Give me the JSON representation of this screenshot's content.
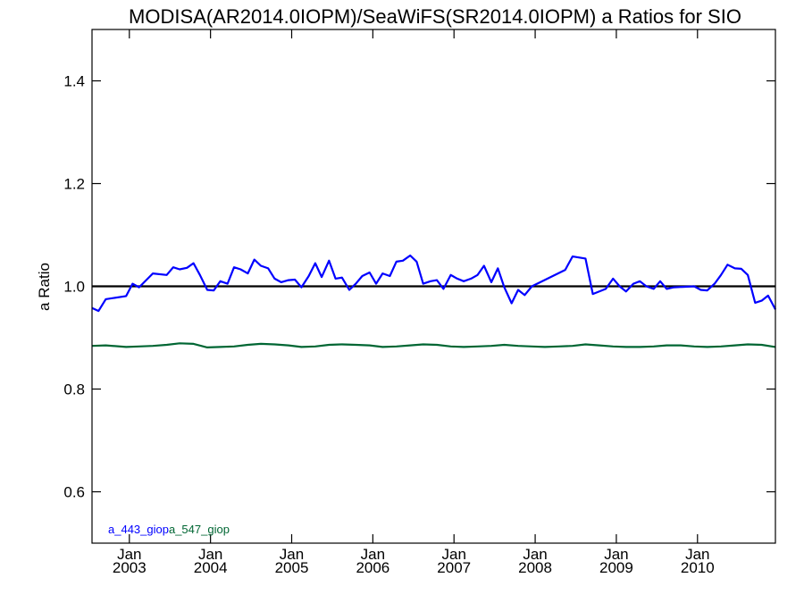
{
  "chart_data": {
    "type": "line",
    "title": "MODISA(AR2014.0IOPM)/SeaWiFS(SR2014.0IOPM)  a Ratios for SIO",
    "xlabel": "",
    "ylabel": "a Ratio",
    "xlim": [
      2002.54,
      2010.96
    ],
    "ylim": [
      0.5,
      1.5
    ],
    "yticks": [
      0.6,
      0.8,
      1.0,
      1.2,
      1.4
    ],
    "ytick_labels": [
      "0.6",
      "0.8",
      "1.0",
      "1.2",
      "1.4"
    ],
    "xticks": [
      {
        "x": 2003.0,
        "top": "Jan",
        "bottom": "2003"
      },
      {
        "x": 2004.0,
        "top": "Jan",
        "bottom": "2004"
      },
      {
        "x": 2005.0,
        "top": "Jan",
        "bottom": "2005"
      },
      {
        "x": 2006.0,
        "top": "Jan",
        "bottom": "2006"
      },
      {
        "x": 2007.0,
        "top": "Jan",
        "bottom": "2007"
      },
      {
        "x": 2008.0,
        "top": "Jan",
        "bottom": "2008"
      },
      {
        "x": 2009.0,
        "top": "Jan",
        "bottom": "2009"
      },
      {
        "x": 2010.0,
        "top": "Jan",
        "bottom": "2010"
      }
    ],
    "reference_line": {
      "y": 1.0,
      "color": "#000000"
    },
    "grid": false,
    "legend_position": "bottom-left",
    "series": [
      {
        "name": "a_443_giop",
        "color": "#0000ff",
        "x": [
          2002.54,
          2002.62,
          2002.71,
          2002.96,
          2003.04,
          2003.12,
          2003.29,
          2003.46,
          2003.54,
          2003.62,
          2003.71,
          2003.79,
          2003.87,
          2003.96,
          2004.04,
          2004.12,
          2004.21,
          2004.29,
          2004.37,
          2004.46,
          2004.54,
          2004.62,
          2004.71,
          2004.79,
          2004.87,
          2004.96,
          2005.04,
          2005.12,
          2005.21,
          2005.29,
          2005.37,
          2005.46,
          2005.54,
          2005.62,
          2005.71,
          2005.79,
          2005.87,
          2005.96,
          2006.04,
          2006.12,
          2006.21,
          2006.29,
          2006.37,
          2006.46,
          2006.54,
          2006.62,
          2006.71,
          2006.79,
          2006.87,
          2006.96,
          2007.04,
          2007.12,
          2007.21,
          2007.29,
          2007.37,
          2007.46,
          2007.54,
          2007.62,
          2007.71,
          2007.79,
          2007.87,
          2007.96,
          2008.37,
          2008.46,
          2008.62,
          2008.71,
          2008.87,
          2008.96,
          2009.04,
          2009.12,
          2009.21,
          2009.29,
          2009.37,
          2009.46,
          2009.54,
          2009.62,
          2009.71,
          2009.96,
          2010.04,
          2010.12,
          2010.21,
          2010.29,
          2010.37,
          2010.46,
          2010.54,
          2010.62,
          2010.71,
          2010.79,
          2010.87,
          2010.96
        ],
        "y": [
          0.958,
          0.952,
          0.975,
          0.981,
          1.005,
          0.998,
          1.025,
          1.022,
          1.037,
          1.033,
          1.036,
          1.045,
          1.022,
          0.993,
          0.992,
          1.01,
          1.005,
          1.037,
          1.033,
          1.025,
          1.052,
          1.04,
          1.035,
          1.015,
          1.008,
          1.012,
          1.013,
          0.998,
          1.02,
          1.045,
          1.018,
          1.05,
          1.015,
          1.017,
          0.993,
          1.005,
          1.02,
          1.027,
          1.005,
          1.025,
          1.02,
          1.048,
          1.05,
          1.06,
          1.048,
          1.005,
          1.01,
          1.012,
          0.995,
          1.022,
          1.015,
          1.01,
          1.015,
          1.022,
          1.04,
          1.008,
          1.035,
          0.998,
          0.967,
          0.993,
          0.983,
          1.0,
          1.032,
          1.058,
          1.054,
          0.985,
          0.995,
          1.015,
          1.0,
          0.99,
          1.005,
          1.01,
          1.0,
          0.995,
          1.01,
          0.995,
          0.998,
          1.0,
          0.993,
          0.992,
          1.005,
          1.022,
          1.042,
          1.035,
          1.034,
          1.022,
          0.968,
          0.972,
          0.982,
          0.955
        ]
      },
      {
        "name": "a_547_giop",
        "color": "#006633",
        "x": [
          2002.54,
          2002.71,
          2002.96,
          2003.12,
          2003.29,
          2003.46,
          2003.62,
          2003.79,
          2003.96,
          2004.12,
          2004.29,
          2004.46,
          2004.62,
          2004.79,
          2004.96,
          2005.12,
          2005.29,
          2005.46,
          2005.62,
          2005.79,
          2005.96,
          2006.12,
          2006.29,
          2006.46,
          2006.62,
          2006.79,
          2006.96,
          2007.12,
          2007.29,
          2007.46,
          2007.62,
          2007.79,
          2007.96,
          2008.12,
          2008.29,
          2008.46,
          2008.62,
          2008.79,
          2008.96,
          2009.12,
          2009.29,
          2009.46,
          2009.62,
          2009.79,
          2009.96,
          2010.12,
          2010.29,
          2010.46,
          2010.62,
          2010.79,
          2010.96
        ],
        "y": [
          0.884,
          0.885,
          0.882,
          0.883,
          0.884,
          0.886,
          0.889,
          0.888,
          0.881,
          0.882,
          0.883,
          0.886,
          0.888,
          0.887,
          0.885,
          0.882,
          0.883,
          0.886,
          0.887,
          0.886,
          0.885,
          0.882,
          0.883,
          0.885,
          0.887,
          0.886,
          0.883,
          0.882,
          0.883,
          0.884,
          0.886,
          0.884,
          0.883,
          0.882,
          0.883,
          0.884,
          0.887,
          0.885,
          0.883,
          0.882,
          0.882,
          0.883,
          0.885,
          0.885,
          0.883,
          0.882,
          0.883,
          0.885,
          0.887,
          0.886,
          0.882
        ]
      }
    ]
  }
}
